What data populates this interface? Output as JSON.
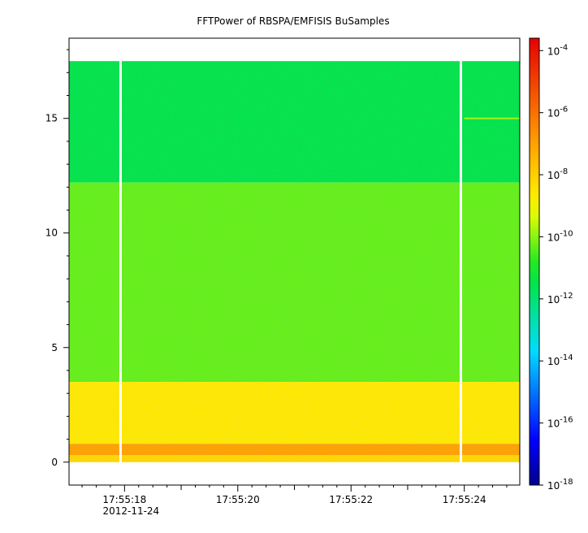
{
  "chart_data": {
    "type": "heatmap",
    "title": "FFTPower of RBSPA/EMFISIS  BuSamples",
    "xlabel": "",
    "ylabel": "",
    "x_ticks": [
      {
        "value": 18,
        "label": "17:55:18",
        "sublabel": "2012-11-24"
      },
      {
        "value": 20,
        "label": "17:55:20"
      },
      {
        "value": 22,
        "label": "17:55:22"
      },
      {
        "value": 24,
        "label": "17:55:24"
      }
    ],
    "xlim": [
      17.02,
      24.98
    ],
    "ylim": [
      -1,
      18.5
    ],
    "y_ticks": [
      0,
      5,
      10,
      15
    ],
    "colorbar": {
      "scale": "log",
      "range_exponents": [
        -18,
        -3.6
      ],
      "tick_exponents": [
        -4,
        -6,
        -8,
        -10,
        -12,
        -14,
        -16,
        -18
      ],
      "tick_base": "10"
    },
    "data_extent": {
      "x": [
        17.0,
        25.0
      ],
      "y": [
        0,
        17.5
      ]
    },
    "gaps_x": [
      17.93,
      23.94
    ],
    "bands": [
      {
        "y_from": 12.2,
        "y_to": 17.5,
        "log10_power": -11.5
      },
      {
        "y_from": 3.5,
        "y_to": 12.2,
        "log10_power": -10.3
      },
      {
        "y_from": 0.8,
        "y_to": 3.5,
        "log10_power": -8.6
      },
      {
        "y_from": 0.3,
        "y_to": 0.8,
        "log10_power": -7.0
      },
      {
        "y_from": 0.0,
        "y_to": 0.3,
        "log10_power": -8.2
      }
    ],
    "lines": [
      {
        "y": 15.0,
        "x_from": 24.0,
        "x_to": 25.0,
        "log10_power": -9.8
      }
    ]
  }
}
